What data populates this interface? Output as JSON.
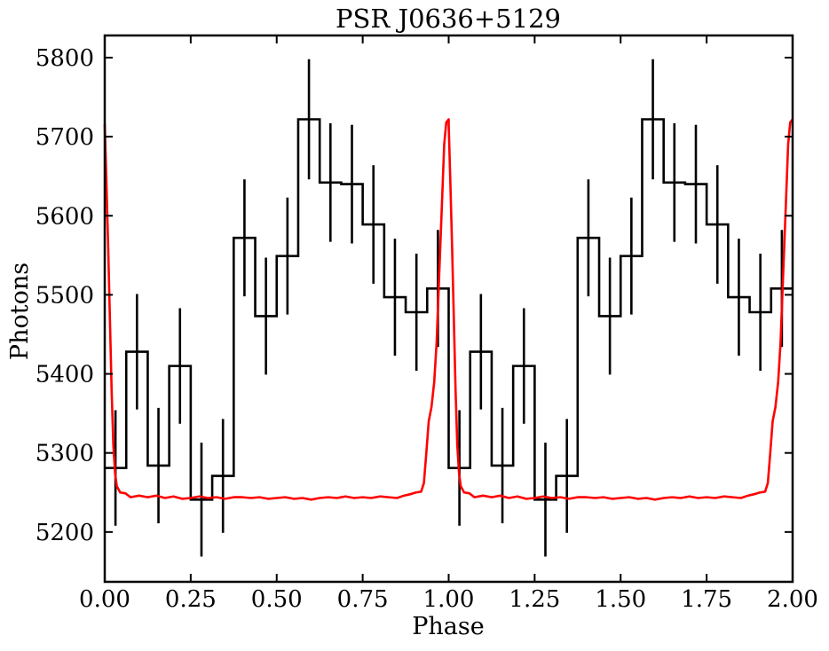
{
  "chart_data": {
    "type": "line",
    "title": "PSR J0636+5129",
    "xlabel": "Phase",
    "ylabel": "Photons",
    "xlim": [
      0.0,
      2.0
    ],
    "ylim": [
      5137,
      5828
    ],
    "xticks": [
      "0.00",
      "0.25",
      "0.50",
      "0.75",
      "1.00",
      "1.25",
      "1.50",
      "1.75",
      "2.00"
    ],
    "yticks": [
      "5200",
      "5300",
      "5400",
      "5500",
      "5600",
      "5700",
      "5800"
    ],
    "grid": false,
    "legend": "none",
    "series": [
      {
        "kind": "step-histogram",
        "color": "#000000",
        "bin_width": 0.0625,
        "bins_per_cycle": 16,
        "cycles": 2,
        "values": [
          5281,
          5428,
          5284,
          5410,
          5241,
          5271,
          5572,
          5473,
          5549,
          5722,
          5642,
          5640,
          5589,
          5497,
          5478,
          5508
        ],
        "errors": [
          73,
          73,
          73,
          73,
          72,
          72,
          74,
          74,
          74,
          76,
          75,
          75,
          75,
          74,
          74,
          74
        ]
      },
      {
        "kind": "line",
        "color": "#ff0000",
        "baseline": 5244,
        "peak_phase": 0.0,
        "peak_value": 5722,
        "shoulder_value": 5340,
        "points": [
          [
            0.0,
            5716
          ],
          [
            0.005,
            5640
          ],
          [
            0.01,
            5560
          ],
          [
            0.015,
            5470
          ],
          [
            0.02,
            5380
          ],
          [
            0.025,
            5310
          ],
          [
            0.03,
            5275
          ],
          [
            0.035,
            5258
          ],
          [
            0.045,
            5250
          ],
          [
            0.06,
            5249
          ],
          [
            0.075,
            5244
          ],
          [
            0.1,
            5246
          ],
          [
            0.125,
            5244
          ],
          [
            0.15,
            5246
          ],
          [
            0.175,
            5243
          ],
          [
            0.2,
            5245
          ],
          [
            0.225,
            5242
          ],
          [
            0.25,
            5243
          ],
          [
            0.275,
            5245
          ],
          [
            0.3,
            5243
          ],
          [
            0.325,
            5244
          ],
          [
            0.35,
            5242
          ],
          [
            0.375,
            5244
          ],
          [
            0.4,
            5244
          ],
          [
            0.425,
            5243
          ],
          [
            0.45,
            5244
          ],
          [
            0.475,
            5242
          ],
          [
            0.5,
            5243
          ],
          [
            0.525,
            5244
          ],
          [
            0.55,
            5242
          ],
          [
            0.575,
            5243
          ],
          [
            0.6,
            5241
          ],
          [
            0.625,
            5243
          ],
          [
            0.65,
            5244
          ],
          [
            0.675,
            5243
          ],
          [
            0.7,
            5245
          ],
          [
            0.725,
            5243
          ],
          [
            0.75,
            5244
          ],
          [
            0.775,
            5243
          ],
          [
            0.8,
            5245
          ],
          [
            0.825,
            5244
          ],
          [
            0.85,
            5243
          ],
          [
            0.87,
            5246
          ],
          [
            0.89,
            5248
          ],
          [
            0.905,
            5250
          ],
          [
            0.92,
            5251
          ],
          [
            0.928,
            5262
          ],
          [
            0.935,
            5300
          ],
          [
            0.942,
            5340
          ],
          [
            0.95,
            5358
          ],
          [
            0.958,
            5390
          ],
          [
            0.965,
            5440
          ],
          [
            0.972,
            5520
          ],
          [
            0.98,
            5610
          ],
          [
            0.987,
            5690
          ],
          [
            0.993,
            5718
          ],
          [
            1.0,
            5722
          ]
        ]
      }
    ]
  }
}
